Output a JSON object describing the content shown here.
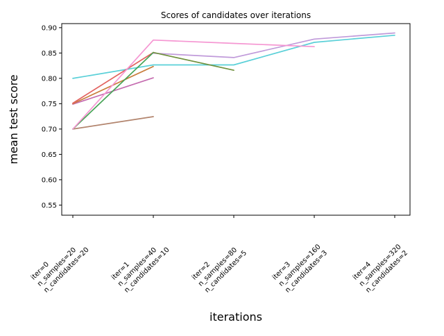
{
  "chart_data": {
    "type": "line",
    "title": "Scores of candidates over iterations",
    "xlabel": "iterations",
    "ylabel": "mean test score",
    "ylim": [
      0.53,
      0.908
    ],
    "yticks": [
      0.55,
      0.6,
      0.65,
      0.7,
      0.75,
      0.8,
      0.85,
      0.9
    ],
    "grid": false,
    "legend": "none",
    "xtick_labels": [
      [
        "iter=0",
        "n_samples=20",
        "n_candidates=20"
      ],
      [
        "iter=1",
        "n_samples=40",
        "n_candidates=10"
      ],
      [
        "iter=2",
        "n_samples=80",
        "n_candidates=5"
      ],
      [
        "iter=3",
        "n_samples=160",
        "n_candidates=3"
      ],
      [
        "iter=4",
        "n_samples=320",
        "n_candidates=2"
      ]
    ],
    "series": [
      {
        "name": "cyan",
        "color": "#5ad0d8",
        "x": [
          0,
          1,
          2,
          3,
          4
        ],
        "y": [
          0.8,
          0.8265,
          0.8265,
          0.871,
          0.885
        ]
      },
      {
        "name": "brown",
        "color": "#b2846d",
        "x": [
          0,
          1
        ],
        "y": [
          0.7,
          0.7245
        ]
      },
      {
        "name": "orchid",
        "color": "#c56cb0",
        "x": [
          0,
          1
        ],
        "y": [
          0.749,
          0.801
        ]
      },
      {
        "name": "orange",
        "color": "#c97e3d",
        "x": [
          0,
          1
        ],
        "y": [
          0.75,
          0.8235
        ]
      },
      {
        "name": "salmon",
        "color": "#e26360",
        "x": [
          0,
          1
        ],
        "y": [
          0.751,
          0.851
        ]
      },
      {
        "name": "plum",
        "color": "#c09ada",
        "x": [
          1,
          2,
          3,
          4
        ],
        "y": [
          0.8495,
          0.841,
          0.8775,
          0.8895
        ]
      },
      {
        "name": "green",
        "color": "#48a457",
        "x": [
          0,
          1
        ],
        "y": [
          0.7,
          0.851
        ]
      },
      {
        "name": "olive",
        "color": "#70913e",
        "x": [
          1,
          2
        ],
        "y": [
          0.851,
          0.816
        ]
      },
      {
        "name": "pink",
        "color": "#f596d2",
        "x": [
          0,
          1,
          2,
          3
        ],
        "y": [
          0.7,
          0.8755,
          0.869,
          0.8625
        ]
      }
    ]
  }
}
